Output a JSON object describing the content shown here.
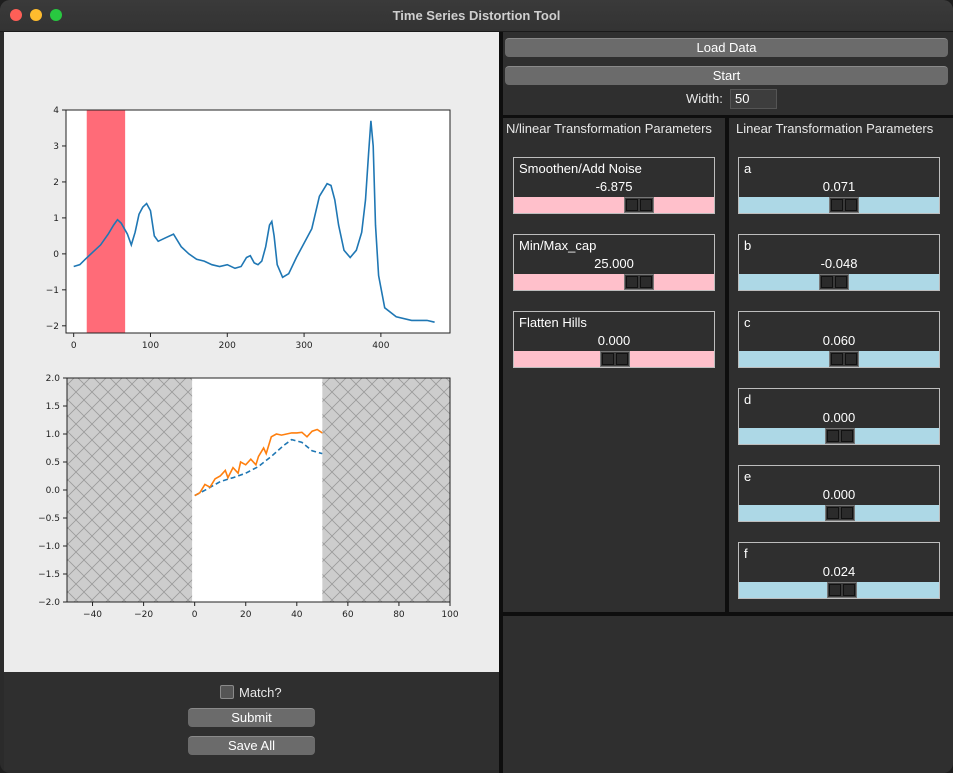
{
  "window": {
    "title": "Time Series Distortion Tool"
  },
  "controls": {
    "load_data": "Load Data",
    "start": "Start",
    "width_label": "Width:",
    "width_value": "50",
    "match_label": "Match?",
    "submit": "Submit",
    "save_all": "Save All"
  },
  "nonlinear": {
    "header": "N/linear Transformation Parameters",
    "params": [
      {
        "name": "Smoothen/Add Noise",
        "value": "-6.875",
        "level": 0.62
      },
      {
        "name": "Min/Max_cap",
        "value": "25.000",
        "level": 0.62
      },
      {
        "name": "Flatten Hills",
        "value": "0.000",
        "level": 0.5
      }
    ]
  },
  "linear": {
    "header": "Linear Transformation Parameters",
    "params": [
      {
        "name": "a",
        "value": "0.071",
        "level": 0.52
      },
      {
        "name": "b",
        "value": "-0.048",
        "level": 0.47
      },
      {
        "name": "c",
        "value": "0.060",
        "level": 0.52
      },
      {
        "name": "d",
        "value": "0.000",
        "level": 0.5
      },
      {
        "name": "e",
        "value": "0.000",
        "level": 0.5
      },
      {
        "name": "f",
        "value": "0.024",
        "level": 0.51
      }
    ]
  },
  "colors": {
    "pink_track": "#ffc0cb",
    "blue_track": "#add8e6",
    "highlight": "#ff6b78",
    "line_blue": "#1f77b4",
    "line_orange": "#ff7f0e"
  },
  "chart_data": [
    {
      "type": "line",
      "xlim": [
        -10,
        490
      ],
      "ylim": [
        -2.2,
        4
      ],
      "xticks": [
        0,
        100,
        200,
        300,
        400
      ],
      "yticks": [
        -2,
        -1,
        0,
        1,
        2,
        3,
        4
      ],
      "highlight_span": [
        17,
        67
      ],
      "series": [
        {
          "color": "#1f77b4",
          "points": [
            [
              0,
              -0.35
            ],
            [
              8,
              -0.3
            ],
            [
              15,
              -0.15
            ],
            [
              25,
              0.05
            ],
            [
              35,
              0.25
            ],
            [
              45,
              0.55
            ],
            [
              52,
              0.8
            ],
            [
              57,
              0.95
            ],
            [
              62,
              0.85
            ],
            [
              70,
              0.55
            ],
            [
              75,
              0.25
            ],
            [
              80,
              0.6
            ],
            [
              85,
              1.1
            ],
            [
              90,
              1.3
            ],
            [
              95,
              1.4
            ],
            [
              100,
              1.2
            ],
            [
              105,
              0.5
            ],
            [
              110,
              0.35
            ],
            [
              120,
              0.45
            ],
            [
              130,
              0.55
            ],
            [
              140,
              0.2
            ],
            [
              150,
              0.0
            ],
            [
              160,
              -0.15
            ],
            [
              170,
              -0.2
            ],
            [
              180,
              -0.3
            ],
            [
              190,
              -0.35
            ],
            [
              200,
              -0.3
            ],
            [
              210,
              -0.4
            ],
            [
              218,
              -0.35
            ],
            [
              225,
              -0.1
            ],
            [
              230,
              -0.05
            ],
            [
              235,
              -0.25
            ],
            [
              240,
              -0.3
            ],
            [
              245,
              -0.2
            ],
            [
              250,
              0.2
            ],
            [
              255,
              0.8
            ],
            [
              258,
              0.9
            ],
            [
              261,
              0.5
            ],
            [
              265,
              -0.3
            ],
            [
              272,
              -0.65
            ],
            [
              280,
              -0.55
            ],
            [
              290,
              -0.1
            ],
            [
              300,
              0.3
            ],
            [
              310,
              0.7
            ],
            [
              320,
              1.6
            ],
            [
              330,
              1.95
            ],
            [
              335,
              1.9
            ],
            [
              340,
              1.5
            ],
            [
              345,
              0.8
            ],
            [
              352,
              0.1
            ],
            [
              360,
              -0.1
            ],
            [
              368,
              0.1
            ],
            [
              375,
              0.6
            ],
            [
              380,
              1.5
            ],
            [
              384,
              2.8
            ],
            [
              387,
              3.7
            ],
            [
              390,
              3.0
            ],
            [
              393,
              0.8
            ],
            [
              397,
              -0.6
            ],
            [
              405,
              -1.5
            ],
            [
              420,
              -1.75
            ],
            [
              440,
              -1.85
            ],
            [
              460,
              -1.85
            ],
            [
              470,
              -1.9
            ]
          ]
        }
      ]
    },
    {
      "type": "line",
      "xlim": [
        -50,
        100
      ],
      "ylim": [
        -2,
        2
      ],
      "xticks": [
        -40,
        -20,
        0,
        20,
        40,
        60,
        80,
        100
      ],
      "yticks": [
        -2.0,
        -1.5,
        -1.0,
        -0.5,
        0.0,
        0.5,
        1.0,
        1.5,
        2.0
      ],
      "hatched_regions": [
        [
          -50,
          -1
        ],
        [
          50,
          100
        ]
      ],
      "series": [
        {
          "color": "#1f77b4",
          "style": "dashed",
          "points": [
            [
              0,
              -0.1
            ],
            [
              5,
              0.02
            ],
            [
              10,
              0.15
            ],
            [
              15,
              0.22
            ],
            [
              20,
              0.3
            ],
            [
              25,
              0.42
            ],
            [
              30,
              0.6
            ],
            [
              35,
              0.8
            ],
            [
              38,
              0.9
            ],
            [
              42,
              0.85
            ],
            [
              46,
              0.7
            ],
            [
              50,
              0.65
            ]
          ]
        },
        {
          "color": "#ff7f0e",
          "style": "solid",
          "points": [
            [
              0,
              -0.1
            ],
            [
              2,
              -0.05
            ],
            [
              4,
              0.1
            ],
            [
              6,
              0.05
            ],
            [
              8,
              0.2
            ],
            [
              10,
              0.25
            ],
            [
              12,
              0.35
            ],
            [
              13,
              0.22
            ],
            [
              15,
              0.4
            ],
            [
              17,
              0.3
            ],
            [
              18,
              0.5
            ],
            [
              20,
              0.45
            ],
            [
              22,
              0.55
            ],
            [
              24,
              0.45
            ],
            [
              25,
              0.6
            ],
            [
              27,
              0.75
            ],
            [
              28,
              0.65
            ],
            [
              30,
              0.95
            ],
            [
              32,
              1.0
            ],
            [
              34,
              0.98
            ],
            [
              36,
              1.0
            ],
            [
              38,
              1.02
            ],
            [
              40,
              1.02
            ],
            [
              42,
              1.03
            ],
            [
              44,
              0.95
            ],
            [
              46,
              1.05
            ],
            [
              48,
              1.08
            ],
            [
              50,
              1.02
            ]
          ]
        }
      ]
    }
  ]
}
